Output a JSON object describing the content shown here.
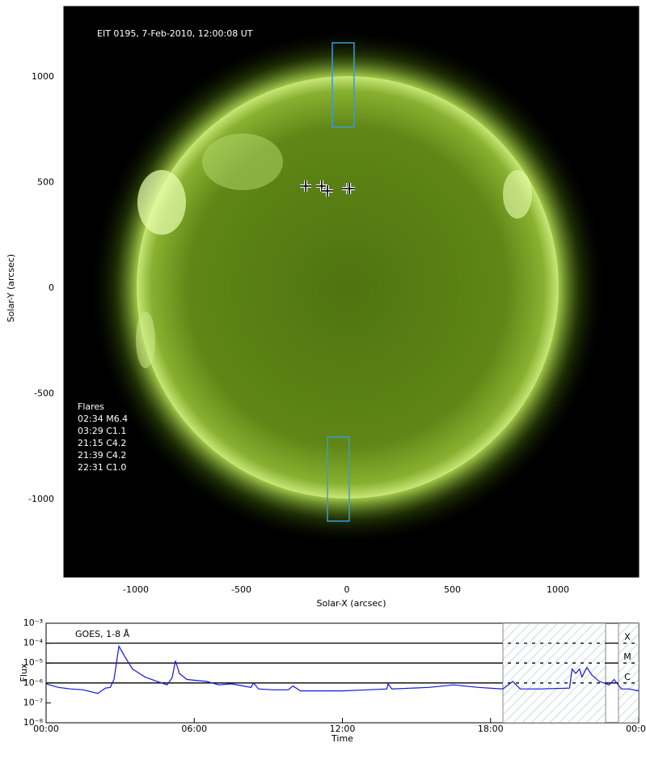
{
  "chart_data": [
    {
      "type": "image",
      "title": "EIT 0195, 7-Feb-2010, 12:00:08 UT",
      "xlabel": "Solar-X (arcsec)",
      "ylabel": "Solar-Y (arcsec)",
      "xlim": [
        -1341,
        1383
      ],
      "ylim": [
        -1368,
        1333
      ],
      "xticks": [
        -1000,
        -500,
        0,
        500,
        1000
      ],
      "yticks": [
        -1000,
        -500,
        0,
        500,
        1000
      ],
      "annotation_title": "Flares",
      "annotations": [
        "02:34 M6.4",
        "03:29 C1.1",
        "21:15 C4.2",
        "21:39 C4.2",
        "22:31 C1.0"
      ],
      "boxes": [
        {
          "x": [
            -69,
            34
          ],
          "y": [
            762,
            1161
          ],
          "color": "#3a9ad9"
        },
        {
          "x": [
            -92,
            11
          ],
          "y": [
            -1103,
            -705
          ],
          "color": "#3a9ad9"
        }
      ],
      "markers": {
        "x": [
          -195,
          -119,
          -92,
          4,
          12
        ],
        "y": [
          483,
          483,
          460,
          471,
          471
        ]
      }
    },
    {
      "type": "line",
      "log_y": true,
      "xlabel": "Time",
      "ylabel": "Flux",
      "xlim": [
        0,
        24
      ],
      "xticks": [
        {
          "value": 0,
          "label": "00:00"
        },
        {
          "value": 6,
          "label": "06:00"
        },
        {
          "value": 12,
          "label": "12:00"
        },
        {
          "value": 18,
          "label": "18:00"
        },
        {
          "value": 24,
          "label": "00:00"
        }
      ],
      "ylim": [
        1e-08,
        0.001
      ],
      "yticks": [
        {
          "value": 1e-08,
          "label": "10⁻⁸"
        },
        {
          "value": 1e-07,
          "label": "10⁻⁷"
        },
        {
          "value": 1e-06,
          "label": "10⁻⁶"
        },
        {
          "value": 1e-05,
          "label": "10⁻⁵"
        },
        {
          "value": 0.0001,
          "label": "10⁻⁴"
        },
        {
          "value": 0.001,
          "label": "10⁻³"
        }
      ],
      "class_lines": [
        {
          "value": 0.0001,
          "label": "X"
        },
        {
          "value": 1e-05,
          "label": "M"
        },
        {
          "value": 1e-06,
          "label": "C"
        }
      ],
      "shaded": [
        [
          18.5,
          22.66
        ],
        [
          23.18,
          24
        ]
      ],
      "x": [
        0,
        0.5,
        1,
        1.5,
        2.1,
        2.4,
        2.6,
        2.75,
        2.95,
        3.2,
        3.5,
        4,
        4.5,
        4.9,
        5.1,
        5.24,
        5.4,
        5.7,
        6.5,
        7,
        7.5,
        8,
        8.3,
        8.4,
        8.6,
        9.2,
        9.8,
        10,
        10.3,
        11,
        12,
        13,
        13.8,
        13.85,
        14,
        15.5,
        16.5,
        17.5,
        18.5,
        18.9,
        19.2,
        20,
        21.2,
        21.3,
        21.45,
        21.6,
        21.7,
        21.9,
        22.1,
        22.4,
        22.8,
        23,
        23.3,
        23.6,
        24
      ],
      "series": [
        {
          "name": "GOES, 1-8 Å",
          "color": "#1414e6",
          "values": [
            9e-07,
            6e-07,
            5e-07,
            4.5e-07,
            3e-07,
            5.5e-07,
            6e-07,
            1.5e-06,
            7e-05,
            2e-05,
            5e-06,
            2e-06,
            1.2e-06,
            8e-07,
            1.8e-06,
            1.3e-05,
            3e-06,
            1.5e-06,
            1.2e-06,
            8e-07,
            9e-07,
            7e-07,
            6e-07,
            1e-06,
            5e-07,
            4.5e-07,
            4.5e-07,
            7e-07,
            4e-07,
            4e-07,
            4e-07,
            4.5e-07,
            5e-07,
            9e-07,
            5e-07,
            6e-07,
            8e-07,
            6e-07,
            5e-07,
            1.2e-06,
            5e-07,
            5e-07,
            5.5e-07,
            5e-06,
            3e-06,
            5e-06,
            2e-06,
            6e-06,
            2.5e-06,
            1.2e-06,
            8e-07,
            1.5e-06,
            5e-07,
            5e-07,
            4e-07
          ]
        }
      ]
    }
  ]
}
